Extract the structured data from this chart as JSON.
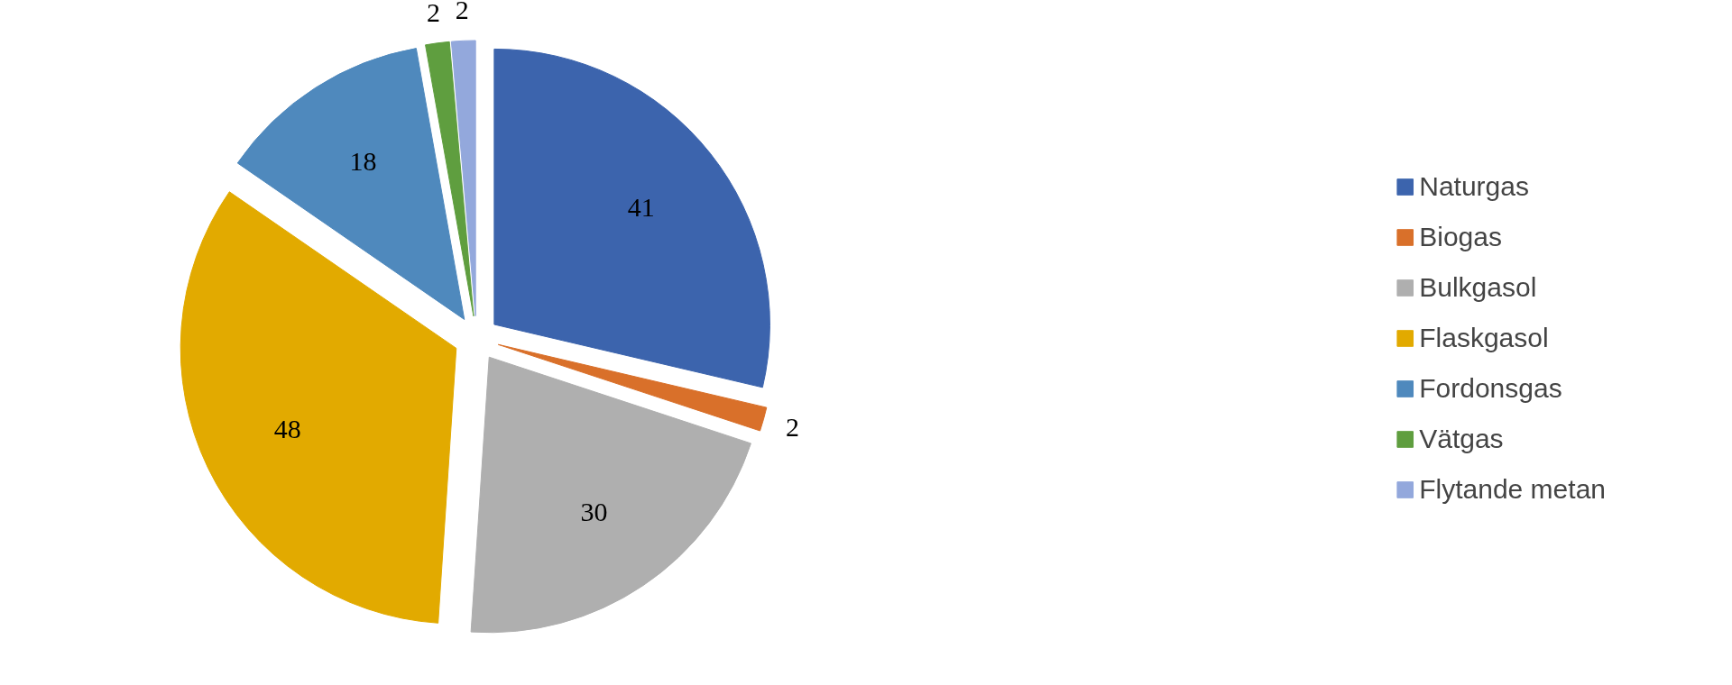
{
  "chart_data": {
    "type": "pie",
    "categories": [
      "Naturgas",
      "Biogas",
      "Bulkgasol",
      "Flaskgasol",
      "Fordonsgas",
      "Vätgas",
      "Flytande metan"
    ],
    "values": [
      41,
      2,
      30,
      48,
      18,
      2,
      2
    ],
    "colors": [
      "#3c64ad",
      "#d9702a",
      "#afafaf",
      "#e2aa00",
      "#4f89bd",
      "#5f9e3f",
      "#93a8dc"
    ],
    "data_labels": true,
    "legend": "right"
  }
}
